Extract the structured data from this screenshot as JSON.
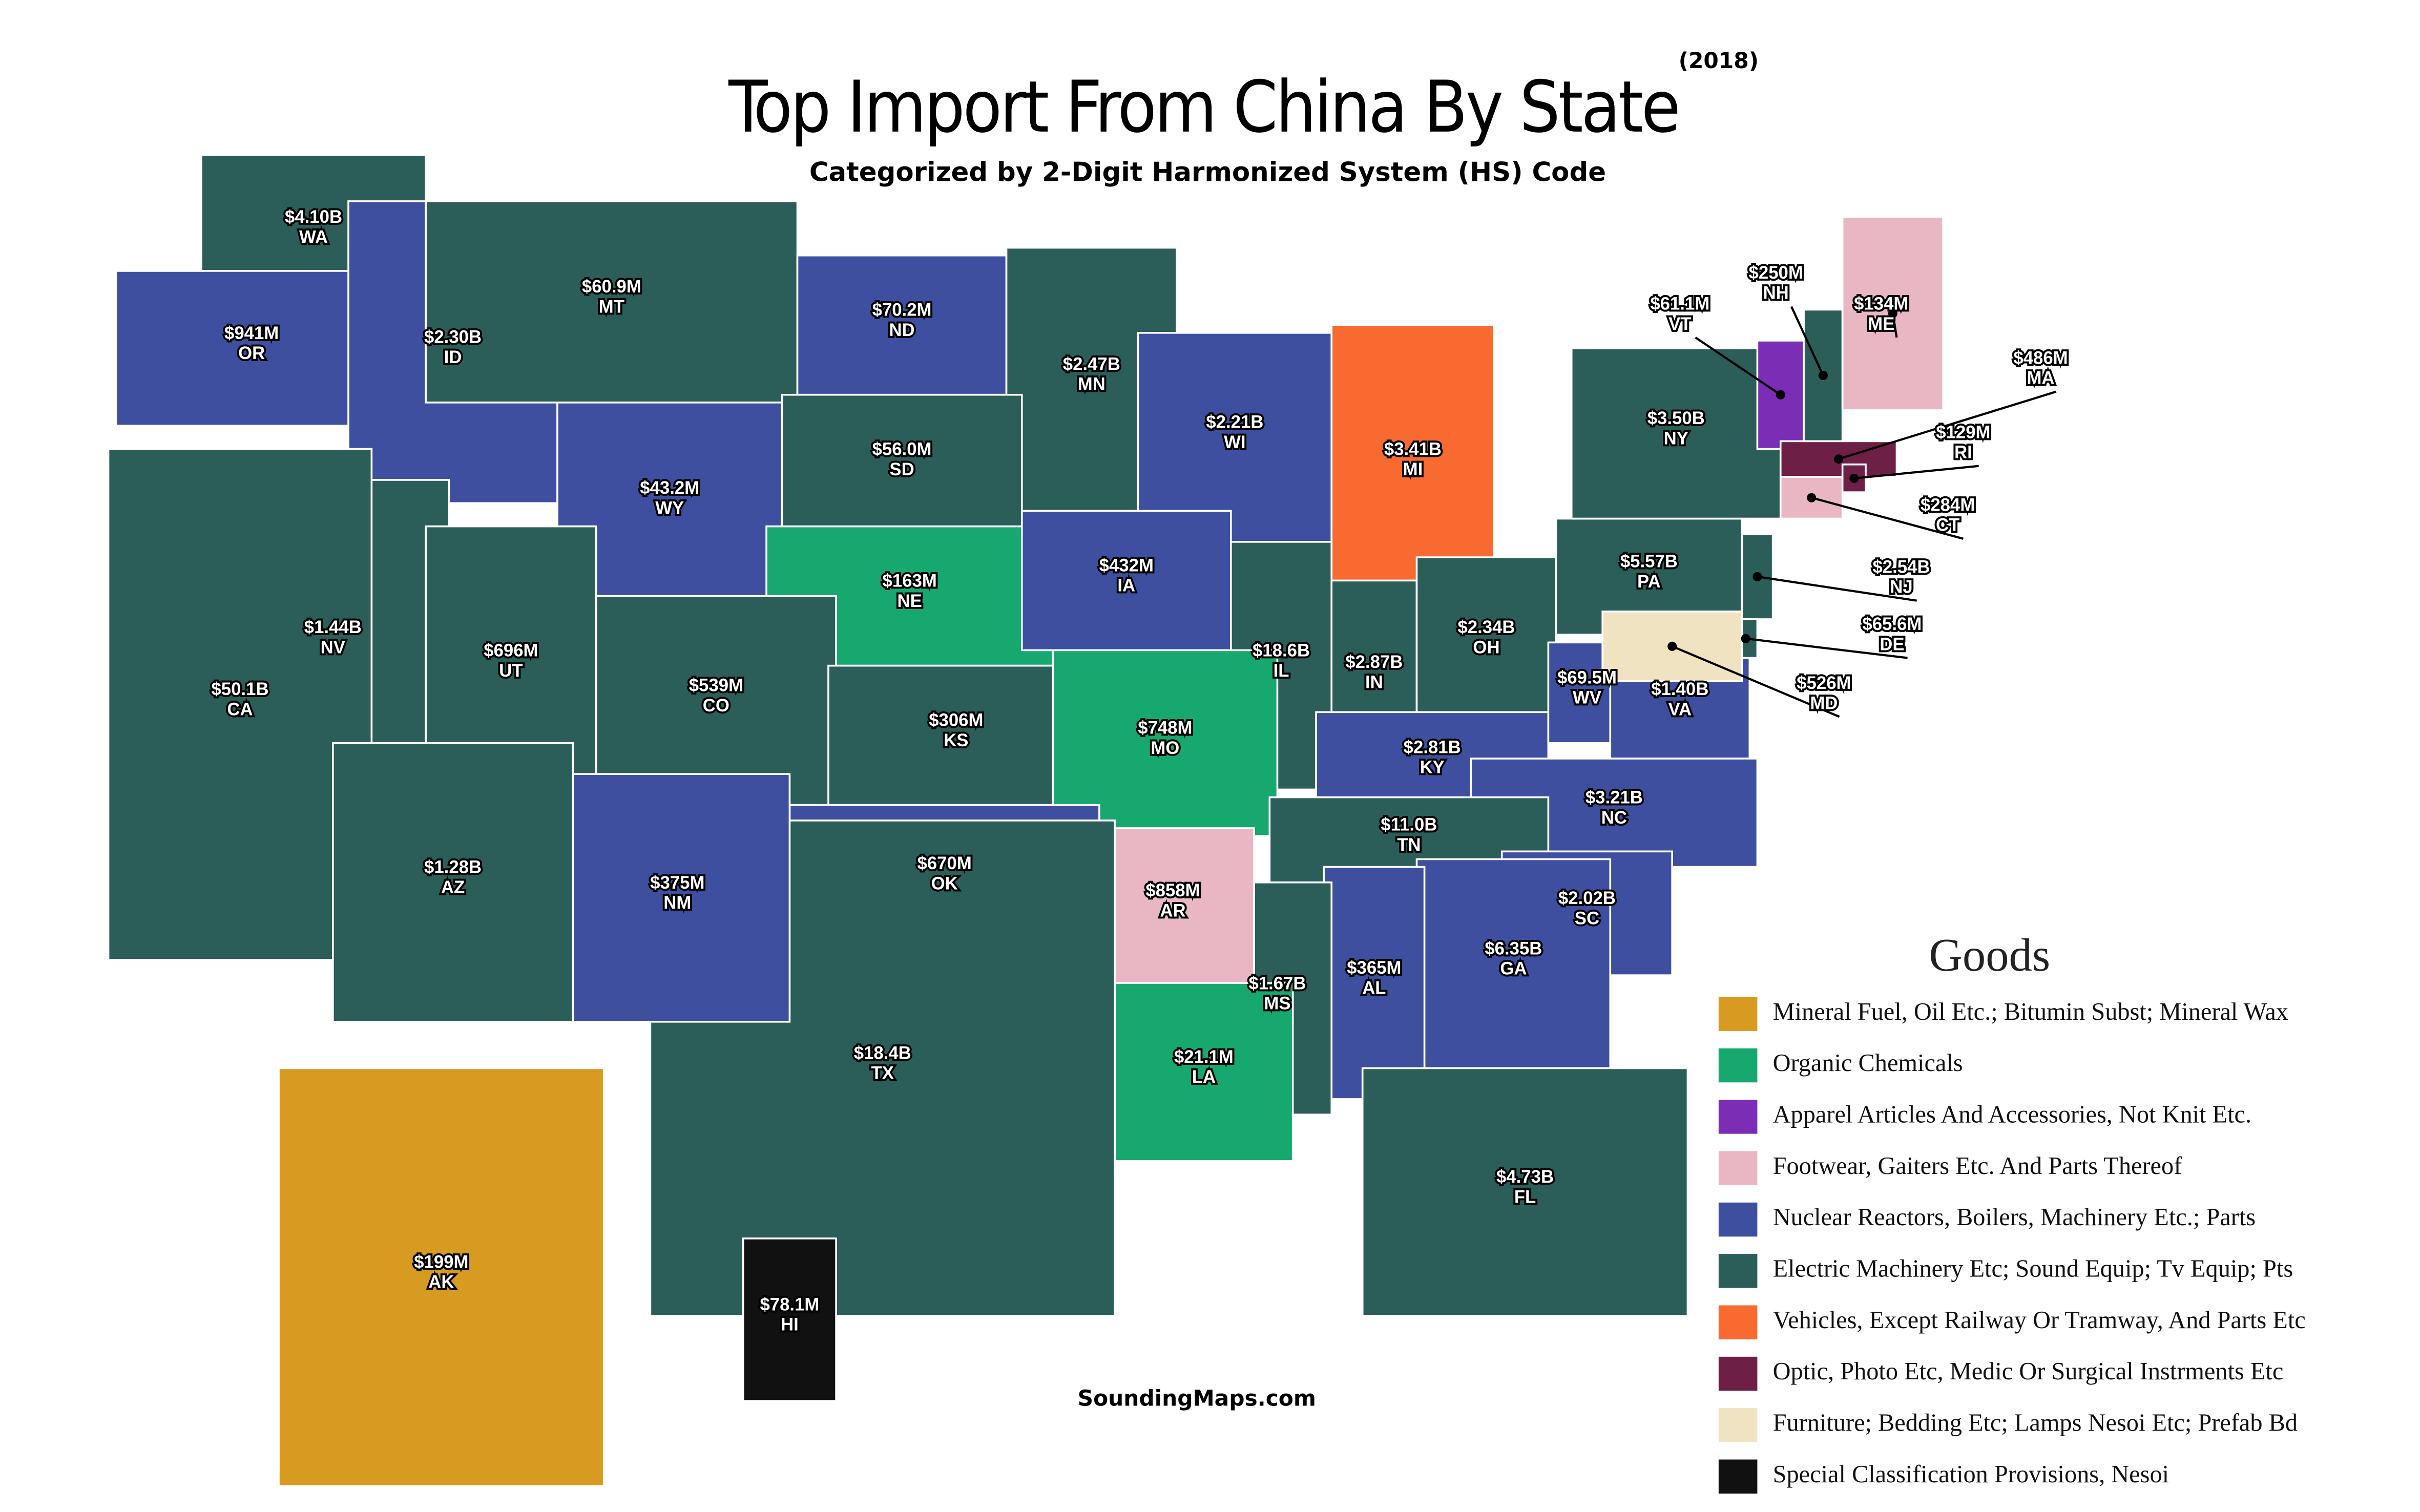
{
  "title": "Top Import From China By State",
  "year": "(2018)",
  "subtitle": "Categorized by 2-Digit Harmonized System (HS) Code",
  "legend": {
    "title": "Goods",
    "items": [
      {
        "label": "Mineral Fuel, Oil Etc.; Bitumin Subst; Mineral Wax",
        "color": "#d89b22"
      },
      {
        "label": "Organic Chemicals",
        "color": "#16a86e"
      },
      {
        "label": "Apparel Articles And Accessories, Not Knit Etc.",
        "color": "#7c2db5"
      },
      {
        "label": "Footwear, Gaiters Etc. And Parts Thereof",
        "color": "#e8b7c3"
      },
      {
        "label": "Nuclear Reactors, Boilers, Machinery Etc.; Parts",
        "color": "#3f4fa0"
      },
      {
        "label": "Electric Machinery Etc; Sound Equip; Tv Equip; Pts",
        "color": "#2b5e58"
      },
      {
        "label": "Vehicles, Except Railway Or Tramway, And Parts Etc",
        "color": "#f96a30"
      },
      {
        "label": "Optic, Photo Etc, Medic Or Surgical Instrments Etc",
        "color": "#6e1f45"
      },
      {
        "label": "Furniture; Bedding Etc; Lamps Nesoi Etc; Prefab Bd",
        "color": "#efe3c2"
      },
      {
        "label": "Special Classification Provisions, Nesoi",
        "color": "#111111"
      }
    ]
  },
  "states": [
    {
      "value": "$4.10B",
      "abbr": "WA",
      "good": 5
    },
    {
      "value": "$941M",
      "abbr": "OR",
      "good": 4
    },
    {
      "value": "$2.30B",
      "abbr": "ID",
      "good": 4
    },
    {
      "value": "$60.9M",
      "abbr": "MT",
      "good": 5
    },
    {
      "value": "$70.2M",
      "abbr": "ND",
      "good": 4
    },
    {
      "value": "$2.47B",
      "abbr": "MN",
      "good": 5
    },
    {
      "value": "$2.21B",
      "abbr": "WI",
      "good": 4
    },
    {
      "value": "$3.41B",
      "abbr": "MI",
      "good": 6
    },
    {
      "value": "$56.0M",
      "abbr": "SD",
      "good": 5
    },
    {
      "value": "$43.2M",
      "abbr": "WY",
      "good": 4
    },
    {
      "value": "$163M",
      "abbr": "NE",
      "good": 1
    },
    {
      "value": "$432M",
      "abbr": "IA",
      "good": 4
    },
    {
      "value": "$18.6B",
      "abbr": "IL",
      "good": 5
    },
    {
      "value": "$2.87B",
      "abbr": "IN",
      "good": 5
    },
    {
      "value": "$2.34B",
      "abbr": "OH",
      "good": 5
    },
    {
      "value": "$5.57B",
      "abbr": "PA",
      "good": 5
    },
    {
      "value": "$3.50B",
      "abbr": "NY",
      "good": 5
    },
    {
      "value": "$1.44B",
      "abbr": "NV",
      "good": 5
    },
    {
      "value": "$50.1B",
      "abbr": "CA",
      "good": 5
    },
    {
      "value": "$696M",
      "abbr": "UT",
      "good": 5
    },
    {
      "value": "$539M",
      "abbr": "CO",
      "good": 5
    },
    {
      "value": "$306M",
      "abbr": "KS",
      "good": 5
    },
    {
      "value": "$748M",
      "abbr": "MO",
      "good": 1
    },
    {
      "value": "$2.81B",
      "abbr": "KY",
      "good": 4
    },
    {
      "value": "$69.5M",
      "abbr": "WV",
      "good": 4
    },
    {
      "value": "$1.40B",
      "abbr": "VA",
      "good": 4
    },
    {
      "value": "$3.21B",
      "abbr": "NC",
      "good": 4
    },
    {
      "value": "$11.0B",
      "abbr": "TN",
      "good": 5
    },
    {
      "value": "$2.02B",
      "abbr": "SC",
      "good": 4
    },
    {
      "value": "$6.35B",
      "abbr": "GA",
      "good": 4
    },
    {
      "value": "$365M",
      "abbr": "AL",
      "good": 4
    },
    {
      "value": "$1.67B",
      "abbr": "MS",
      "good": 5
    },
    {
      "value": "$858M",
      "abbr": "AR",
      "good": 3
    },
    {
      "value": "$21.1M",
      "abbr": "LA",
      "good": 1
    },
    {
      "value": "$670M",
      "abbr": "OK",
      "good": 4
    },
    {
      "value": "$18.4B",
      "abbr": "TX",
      "good": 5
    },
    {
      "value": "$375M",
      "abbr": "NM",
      "good": 4
    },
    {
      "value": "$1.28B",
      "abbr": "AZ",
      "good": 5
    },
    {
      "value": "$4.73B",
      "abbr": "FL",
      "good": 5
    },
    {
      "value": "$199M",
      "abbr": "AK",
      "good": 0
    },
    {
      "value": "$78.1M",
      "abbr": "HI",
      "good": 9
    },
    {
      "value": "$61.1M",
      "abbr": "VT",
      "good": 2
    },
    {
      "value": "$250M",
      "abbr": "NH",
      "good": 5
    },
    {
      "value": "$134M",
      "abbr": "ME",
      "good": 3
    },
    {
      "value": "$486M",
      "abbr": "MA",
      "good": 7
    },
    {
      "value": "$129M",
      "abbr": "RI",
      "good": 7
    },
    {
      "value": "$284M",
      "abbr": "CT",
      "good": 3
    },
    {
      "value": "$2.54B",
      "abbr": "NJ",
      "good": 5
    },
    {
      "value": "$65.6M",
      "abbr": "DE",
      "good": 5
    },
    {
      "value": "$526M",
      "abbr": "MD",
      "good": 8
    }
  ],
  "credit": "SoundingMaps.com"
}
